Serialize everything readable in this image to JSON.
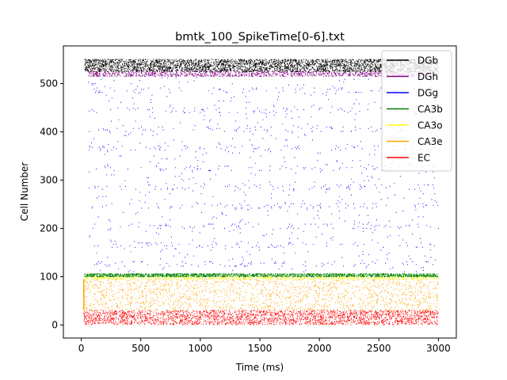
{
  "chart_data": {
    "type": "scatter",
    "title": "bmtk_100_SpikeTime[0-6].txt",
    "xlabel": "Time (ms)",
    "ylabel": "Cell Number",
    "xlim": [
      -150,
      3150
    ],
    "ylim": [
      -27,
      578
    ],
    "xticks": [
      0,
      500,
      1000,
      1500,
      2000,
      2500,
      3000
    ],
    "xtick_labels": [
      "0",
      "500",
      "1000",
      "1500",
      "2000",
      "2500",
      "3000"
    ],
    "yticks": [
      0,
      100,
      200,
      300,
      400,
      500
    ],
    "ytick_labels": [
      "0",
      "100",
      "200",
      "300",
      "400",
      "500"
    ],
    "grid": false,
    "legend_position": "top-right",
    "series": [
      {
        "name": "DGb",
        "color": "#000000",
        "cell_range": [
          525,
          550
        ],
        "time_range": [
          0,
          3000
        ],
        "density": "dense"
      },
      {
        "name": "DGh",
        "color": "#800080",
        "cell_range": [
          515,
          525
        ],
        "time_range": [
          0,
          3000
        ],
        "density": "dense"
      },
      {
        "name": "DGg",
        "color": "#0000ff",
        "cell_range": [
          110,
          515
        ],
        "time_range": [
          0,
          3000
        ],
        "density": "sparse-bands"
      },
      {
        "name": "CA3b",
        "color": "#008000",
        "cell_range": [
          100,
          106
        ],
        "time_range": [
          0,
          3000
        ],
        "density": "dense"
      },
      {
        "name": "CA3o",
        "color": "#ffff00",
        "cell_range": [
          95,
          100
        ],
        "time_range": [
          0,
          3000
        ],
        "density": "dense"
      },
      {
        "name": "CA3e",
        "color": "#ffa500",
        "cell_range": [
          30,
          95
        ],
        "time_range": [
          0,
          3000
        ],
        "density": "moderate"
      },
      {
        "name": "EC",
        "color": "#ff0000",
        "cell_range": [
          0,
          30
        ],
        "time_range": [
          0,
          3000
        ],
        "density": "dense"
      }
    ]
  }
}
